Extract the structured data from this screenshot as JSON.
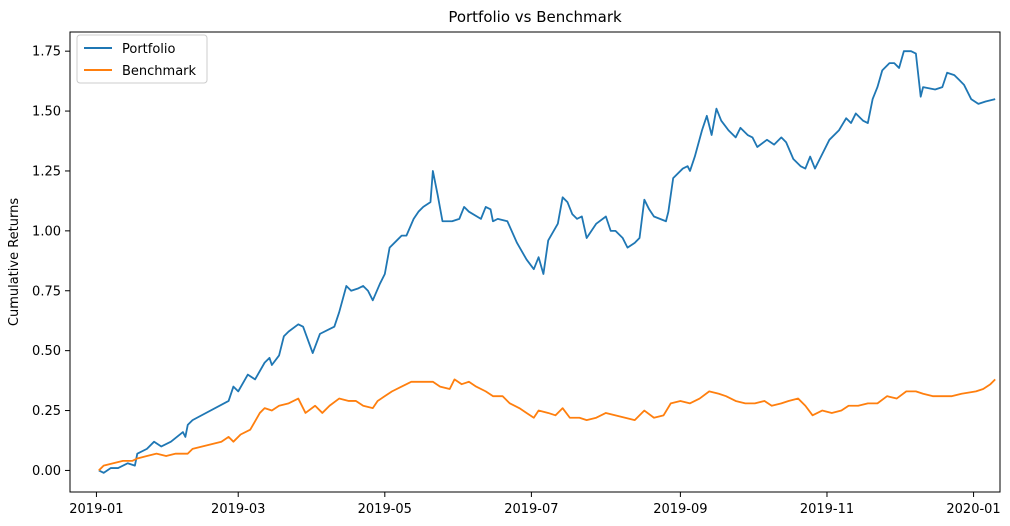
{
  "chart_data": {
    "type": "line",
    "title": "Portfolio vs Benchmark",
    "xlabel": "",
    "ylabel": "Cumulative Returns",
    "xlim": [
      "2018-12-21",
      "2020-01-12"
    ],
    "ylim": [
      -0.09,
      1.83
    ],
    "x_ticks": [
      "2019-01",
      "2019-03",
      "2019-05",
      "2019-07",
      "2019-09",
      "2019-11",
      "2020-01"
    ],
    "y_ticks": [
      "0.00",
      "0.25",
      "0.50",
      "0.75",
      "1.00",
      "1.25",
      "1.50",
      "1.75"
    ],
    "grid": false,
    "legend_position": "top-left",
    "series": [
      {
        "name": "Portfolio",
        "color": "#1f77b4",
        "points": [
          [
            "2019-01-02",
            0.0
          ],
          [
            "2019-01-04",
            -0.01
          ],
          [
            "2019-01-07",
            0.01
          ],
          [
            "2019-01-10",
            0.01
          ],
          [
            "2019-01-14",
            0.03
          ],
          [
            "2019-01-17",
            0.02
          ],
          [
            "2019-01-18",
            0.07
          ],
          [
            "2019-01-22",
            0.09
          ],
          [
            "2019-01-25",
            0.12
          ],
          [
            "2019-01-28",
            0.1
          ],
          [
            "2019-02-01",
            0.12
          ],
          [
            "2019-02-06",
            0.16
          ],
          [
            "2019-02-07",
            0.14
          ],
          [
            "2019-02-08",
            0.19
          ],
          [
            "2019-02-10",
            0.21
          ],
          [
            "2019-02-25",
            0.29
          ],
          [
            "2019-02-27",
            0.35
          ],
          [
            "2019-03-01",
            0.33
          ],
          [
            "2019-03-05",
            0.4
          ],
          [
            "2019-03-08",
            0.38
          ],
          [
            "2019-03-12",
            0.45
          ],
          [
            "2019-03-14",
            0.47
          ],
          [
            "2019-03-15",
            0.44
          ],
          [
            "2019-03-18",
            0.48
          ],
          [
            "2019-03-20",
            0.56
          ],
          [
            "2019-03-22",
            0.58
          ],
          [
            "2019-03-26",
            0.61
          ],
          [
            "2019-03-28",
            0.6
          ],
          [
            "2019-04-01",
            0.49
          ],
          [
            "2019-04-04",
            0.57
          ],
          [
            "2019-04-08",
            0.59
          ],
          [
            "2019-04-10",
            0.6
          ],
          [
            "2019-04-12",
            0.66
          ],
          [
            "2019-04-15",
            0.77
          ],
          [
            "2019-04-17",
            0.75
          ],
          [
            "2019-04-20",
            0.76
          ],
          [
            "2019-04-22",
            0.77
          ],
          [
            "2019-04-24",
            0.75
          ],
          [
            "2019-04-26",
            0.71
          ],
          [
            "2019-04-29",
            0.78
          ],
          [
            "2019-05-01",
            0.82
          ],
          [
            "2019-05-03",
            0.93
          ],
          [
            "2019-05-06",
            0.96
          ],
          [
            "2019-05-08",
            0.98
          ],
          [
            "2019-05-10",
            0.98
          ],
          [
            "2019-05-13",
            1.05
          ],
          [
            "2019-05-15",
            1.08
          ],
          [
            "2019-05-17",
            1.1
          ],
          [
            "2019-05-20",
            1.12
          ],
          [
            "2019-05-21",
            1.25
          ],
          [
            "2019-05-23",
            1.15
          ],
          [
            "2019-05-25",
            1.04
          ],
          [
            "2019-05-29",
            1.04
          ],
          [
            "2019-06-01",
            1.05
          ],
          [
            "2019-06-03",
            1.1
          ],
          [
            "2019-06-05",
            1.08
          ],
          [
            "2019-06-10",
            1.05
          ],
          [
            "2019-06-12",
            1.1
          ],
          [
            "2019-06-14",
            1.09
          ],
          [
            "2019-06-15",
            1.04
          ],
          [
            "2019-06-17",
            1.05
          ],
          [
            "2019-06-21",
            1.04
          ],
          [
            "2019-06-25",
            0.95
          ],
          [
            "2019-06-29",
            0.88
          ],
          [
            "2019-07-02",
            0.84
          ],
          [
            "2019-07-04",
            0.89
          ],
          [
            "2019-07-06",
            0.82
          ],
          [
            "2019-07-08",
            0.96
          ],
          [
            "2019-07-12",
            1.03
          ],
          [
            "2019-07-14",
            1.14
          ],
          [
            "2019-07-16",
            1.12
          ],
          [
            "2019-07-18",
            1.07
          ],
          [
            "2019-07-20",
            1.05
          ],
          [
            "2019-07-22",
            1.06
          ],
          [
            "2019-07-24",
            0.97
          ],
          [
            "2019-07-28",
            1.03
          ],
          [
            "2019-08-01",
            1.06
          ],
          [
            "2019-08-03",
            1.0
          ],
          [
            "2019-08-05",
            1.0
          ],
          [
            "2019-08-08",
            0.97
          ],
          [
            "2019-08-10",
            0.93
          ],
          [
            "2019-08-13",
            0.95
          ],
          [
            "2019-08-15",
            0.97
          ],
          [
            "2019-08-17",
            1.13
          ],
          [
            "2019-08-19",
            1.09
          ],
          [
            "2019-08-21",
            1.06
          ],
          [
            "2019-08-26",
            1.04
          ],
          [
            "2019-08-27",
            1.08
          ],
          [
            "2019-08-29",
            1.22
          ],
          [
            "2019-09-02",
            1.26
          ],
          [
            "2019-09-04",
            1.27
          ],
          [
            "2019-09-05",
            1.25
          ],
          [
            "2019-09-07",
            1.31
          ],
          [
            "2019-09-10",
            1.42
          ],
          [
            "2019-09-12",
            1.48
          ],
          [
            "2019-09-14",
            1.4
          ],
          [
            "2019-09-16",
            1.51
          ],
          [
            "2019-09-18",
            1.46
          ],
          [
            "2019-09-21",
            1.42
          ],
          [
            "2019-09-24",
            1.39
          ],
          [
            "2019-09-26",
            1.43
          ],
          [
            "2019-09-29",
            1.4
          ],
          [
            "2019-10-01",
            1.39
          ],
          [
            "2019-10-03",
            1.35
          ],
          [
            "2019-10-07",
            1.38
          ],
          [
            "2019-10-10",
            1.36
          ],
          [
            "2019-10-13",
            1.39
          ],
          [
            "2019-10-15",
            1.37
          ],
          [
            "2019-10-18",
            1.3
          ],
          [
            "2019-10-21",
            1.27
          ],
          [
            "2019-10-23",
            1.26
          ],
          [
            "2019-10-25",
            1.31
          ],
          [
            "2019-10-27",
            1.26
          ],
          [
            "2019-10-29",
            1.3
          ],
          [
            "2019-11-02",
            1.38
          ],
          [
            "2019-11-06",
            1.42
          ],
          [
            "2019-11-09",
            1.47
          ],
          [
            "2019-11-11",
            1.45
          ],
          [
            "2019-11-13",
            1.49
          ],
          [
            "2019-11-16",
            1.46
          ],
          [
            "2019-11-18",
            1.45
          ],
          [
            "2019-11-20",
            1.55
          ],
          [
            "2019-11-22",
            1.6
          ],
          [
            "2019-11-24",
            1.67
          ],
          [
            "2019-11-27",
            1.7
          ],
          [
            "2019-11-29",
            1.7
          ],
          [
            "2019-12-01",
            1.68
          ],
          [
            "2019-12-03",
            1.75
          ],
          [
            "2019-12-06",
            1.75
          ],
          [
            "2019-12-08",
            1.74
          ],
          [
            "2019-12-10",
            1.56
          ],
          [
            "2019-12-11",
            1.6
          ],
          [
            "2019-12-16",
            1.59
          ],
          [
            "2019-12-19",
            1.6
          ],
          [
            "2019-12-21",
            1.66
          ],
          [
            "2019-12-24",
            1.65
          ],
          [
            "2019-12-26",
            1.63
          ],
          [
            "2019-12-28",
            1.61
          ],
          [
            "2019-12-31",
            1.55
          ],
          [
            "2020-01-03",
            1.53
          ],
          [
            "2020-01-06",
            1.54
          ],
          [
            "2020-01-10",
            1.55
          ]
        ]
      },
      {
        "name": "Benchmark",
        "color": "#ff7f0e",
        "points": [
          [
            "2019-01-02",
            0.0
          ],
          [
            "2019-01-04",
            0.02
          ],
          [
            "2019-01-08",
            0.03
          ],
          [
            "2019-01-12",
            0.04
          ],
          [
            "2019-01-16",
            0.04
          ],
          [
            "2019-01-18",
            0.05
          ],
          [
            "2019-01-22",
            0.06
          ],
          [
            "2019-01-26",
            0.07
          ],
          [
            "2019-01-30",
            0.06
          ],
          [
            "2019-02-03",
            0.07
          ],
          [
            "2019-02-08",
            0.07
          ],
          [
            "2019-02-10",
            0.09
          ],
          [
            "2019-02-22",
            0.12
          ],
          [
            "2019-02-25",
            0.14
          ],
          [
            "2019-02-27",
            0.12
          ],
          [
            "2019-03-02",
            0.15
          ],
          [
            "2019-03-06",
            0.17
          ],
          [
            "2019-03-10",
            0.24
          ],
          [
            "2019-03-12",
            0.26
          ],
          [
            "2019-03-15",
            0.25
          ],
          [
            "2019-03-18",
            0.27
          ],
          [
            "2019-03-22",
            0.28
          ],
          [
            "2019-03-26",
            0.3
          ],
          [
            "2019-03-29",
            0.24
          ],
          [
            "2019-04-02",
            0.27
          ],
          [
            "2019-04-05",
            0.24
          ],
          [
            "2019-04-08",
            0.27
          ],
          [
            "2019-04-12",
            0.3
          ],
          [
            "2019-04-16",
            0.29
          ],
          [
            "2019-04-19",
            0.29
          ],
          [
            "2019-04-22",
            0.27
          ],
          [
            "2019-04-26",
            0.26
          ],
          [
            "2019-04-28",
            0.29
          ],
          [
            "2019-05-01",
            0.31
          ],
          [
            "2019-05-04",
            0.33
          ],
          [
            "2019-05-08",
            0.35
          ],
          [
            "2019-05-12",
            0.37
          ],
          [
            "2019-05-15",
            0.37
          ],
          [
            "2019-05-18",
            0.37
          ],
          [
            "2019-05-21",
            0.37
          ],
          [
            "2019-05-24",
            0.35
          ],
          [
            "2019-05-28",
            0.34
          ],
          [
            "2019-05-30",
            0.38
          ],
          [
            "2019-06-02",
            0.36
          ],
          [
            "2019-06-05",
            0.37
          ],
          [
            "2019-06-08",
            0.35
          ],
          [
            "2019-06-12",
            0.33
          ],
          [
            "2019-06-15",
            0.31
          ],
          [
            "2019-06-19",
            0.31
          ],
          [
            "2019-06-22",
            0.28
          ],
          [
            "2019-06-26",
            0.26
          ],
          [
            "2019-06-29",
            0.24
          ],
          [
            "2019-07-02",
            0.22
          ],
          [
            "2019-07-04",
            0.25
          ],
          [
            "2019-07-08",
            0.24
          ],
          [
            "2019-07-11",
            0.23
          ],
          [
            "2019-07-14",
            0.26
          ],
          [
            "2019-07-17",
            0.22
          ],
          [
            "2019-07-21",
            0.22
          ],
          [
            "2019-07-24",
            0.21
          ],
          [
            "2019-07-28",
            0.22
          ],
          [
            "2019-08-01",
            0.24
          ],
          [
            "2019-08-05",
            0.23
          ],
          [
            "2019-08-09",
            0.22
          ],
          [
            "2019-08-13",
            0.21
          ],
          [
            "2019-08-17",
            0.25
          ],
          [
            "2019-08-21",
            0.22
          ],
          [
            "2019-08-25",
            0.23
          ],
          [
            "2019-08-28",
            0.28
          ],
          [
            "2019-09-01",
            0.29
          ],
          [
            "2019-09-05",
            0.28
          ],
          [
            "2019-09-09",
            0.3
          ],
          [
            "2019-09-13",
            0.33
          ],
          [
            "2019-09-17",
            0.32
          ],
          [
            "2019-09-20",
            0.31
          ],
          [
            "2019-09-24",
            0.29
          ],
          [
            "2019-09-28",
            0.28
          ],
          [
            "2019-10-02",
            0.28
          ],
          [
            "2019-10-06",
            0.29
          ],
          [
            "2019-10-09",
            0.27
          ],
          [
            "2019-10-13",
            0.28
          ],
          [
            "2019-10-16",
            0.29
          ],
          [
            "2019-10-20",
            0.3
          ],
          [
            "2019-10-23",
            0.27
          ],
          [
            "2019-10-26",
            0.23
          ],
          [
            "2019-10-30",
            0.25
          ],
          [
            "2019-11-03",
            0.24
          ],
          [
            "2019-11-07",
            0.25
          ],
          [
            "2019-11-10",
            0.27
          ],
          [
            "2019-11-14",
            0.27
          ],
          [
            "2019-11-18",
            0.28
          ],
          [
            "2019-11-22",
            0.28
          ],
          [
            "2019-11-26",
            0.31
          ],
          [
            "2019-11-30",
            0.3
          ],
          [
            "2019-12-04",
            0.33
          ],
          [
            "2019-12-08",
            0.33
          ],
          [
            "2019-12-11",
            0.32
          ],
          [
            "2019-12-15",
            0.31
          ],
          [
            "2019-12-19",
            0.31
          ],
          [
            "2019-12-23",
            0.31
          ],
          [
            "2019-12-27",
            0.32
          ],
          [
            "2020-01-02",
            0.33
          ],
          [
            "2020-01-05",
            0.34
          ],
          [
            "2020-01-08",
            0.36
          ],
          [
            "2020-01-10",
            0.38
          ]
        ]
      }
    ]
  }
}
